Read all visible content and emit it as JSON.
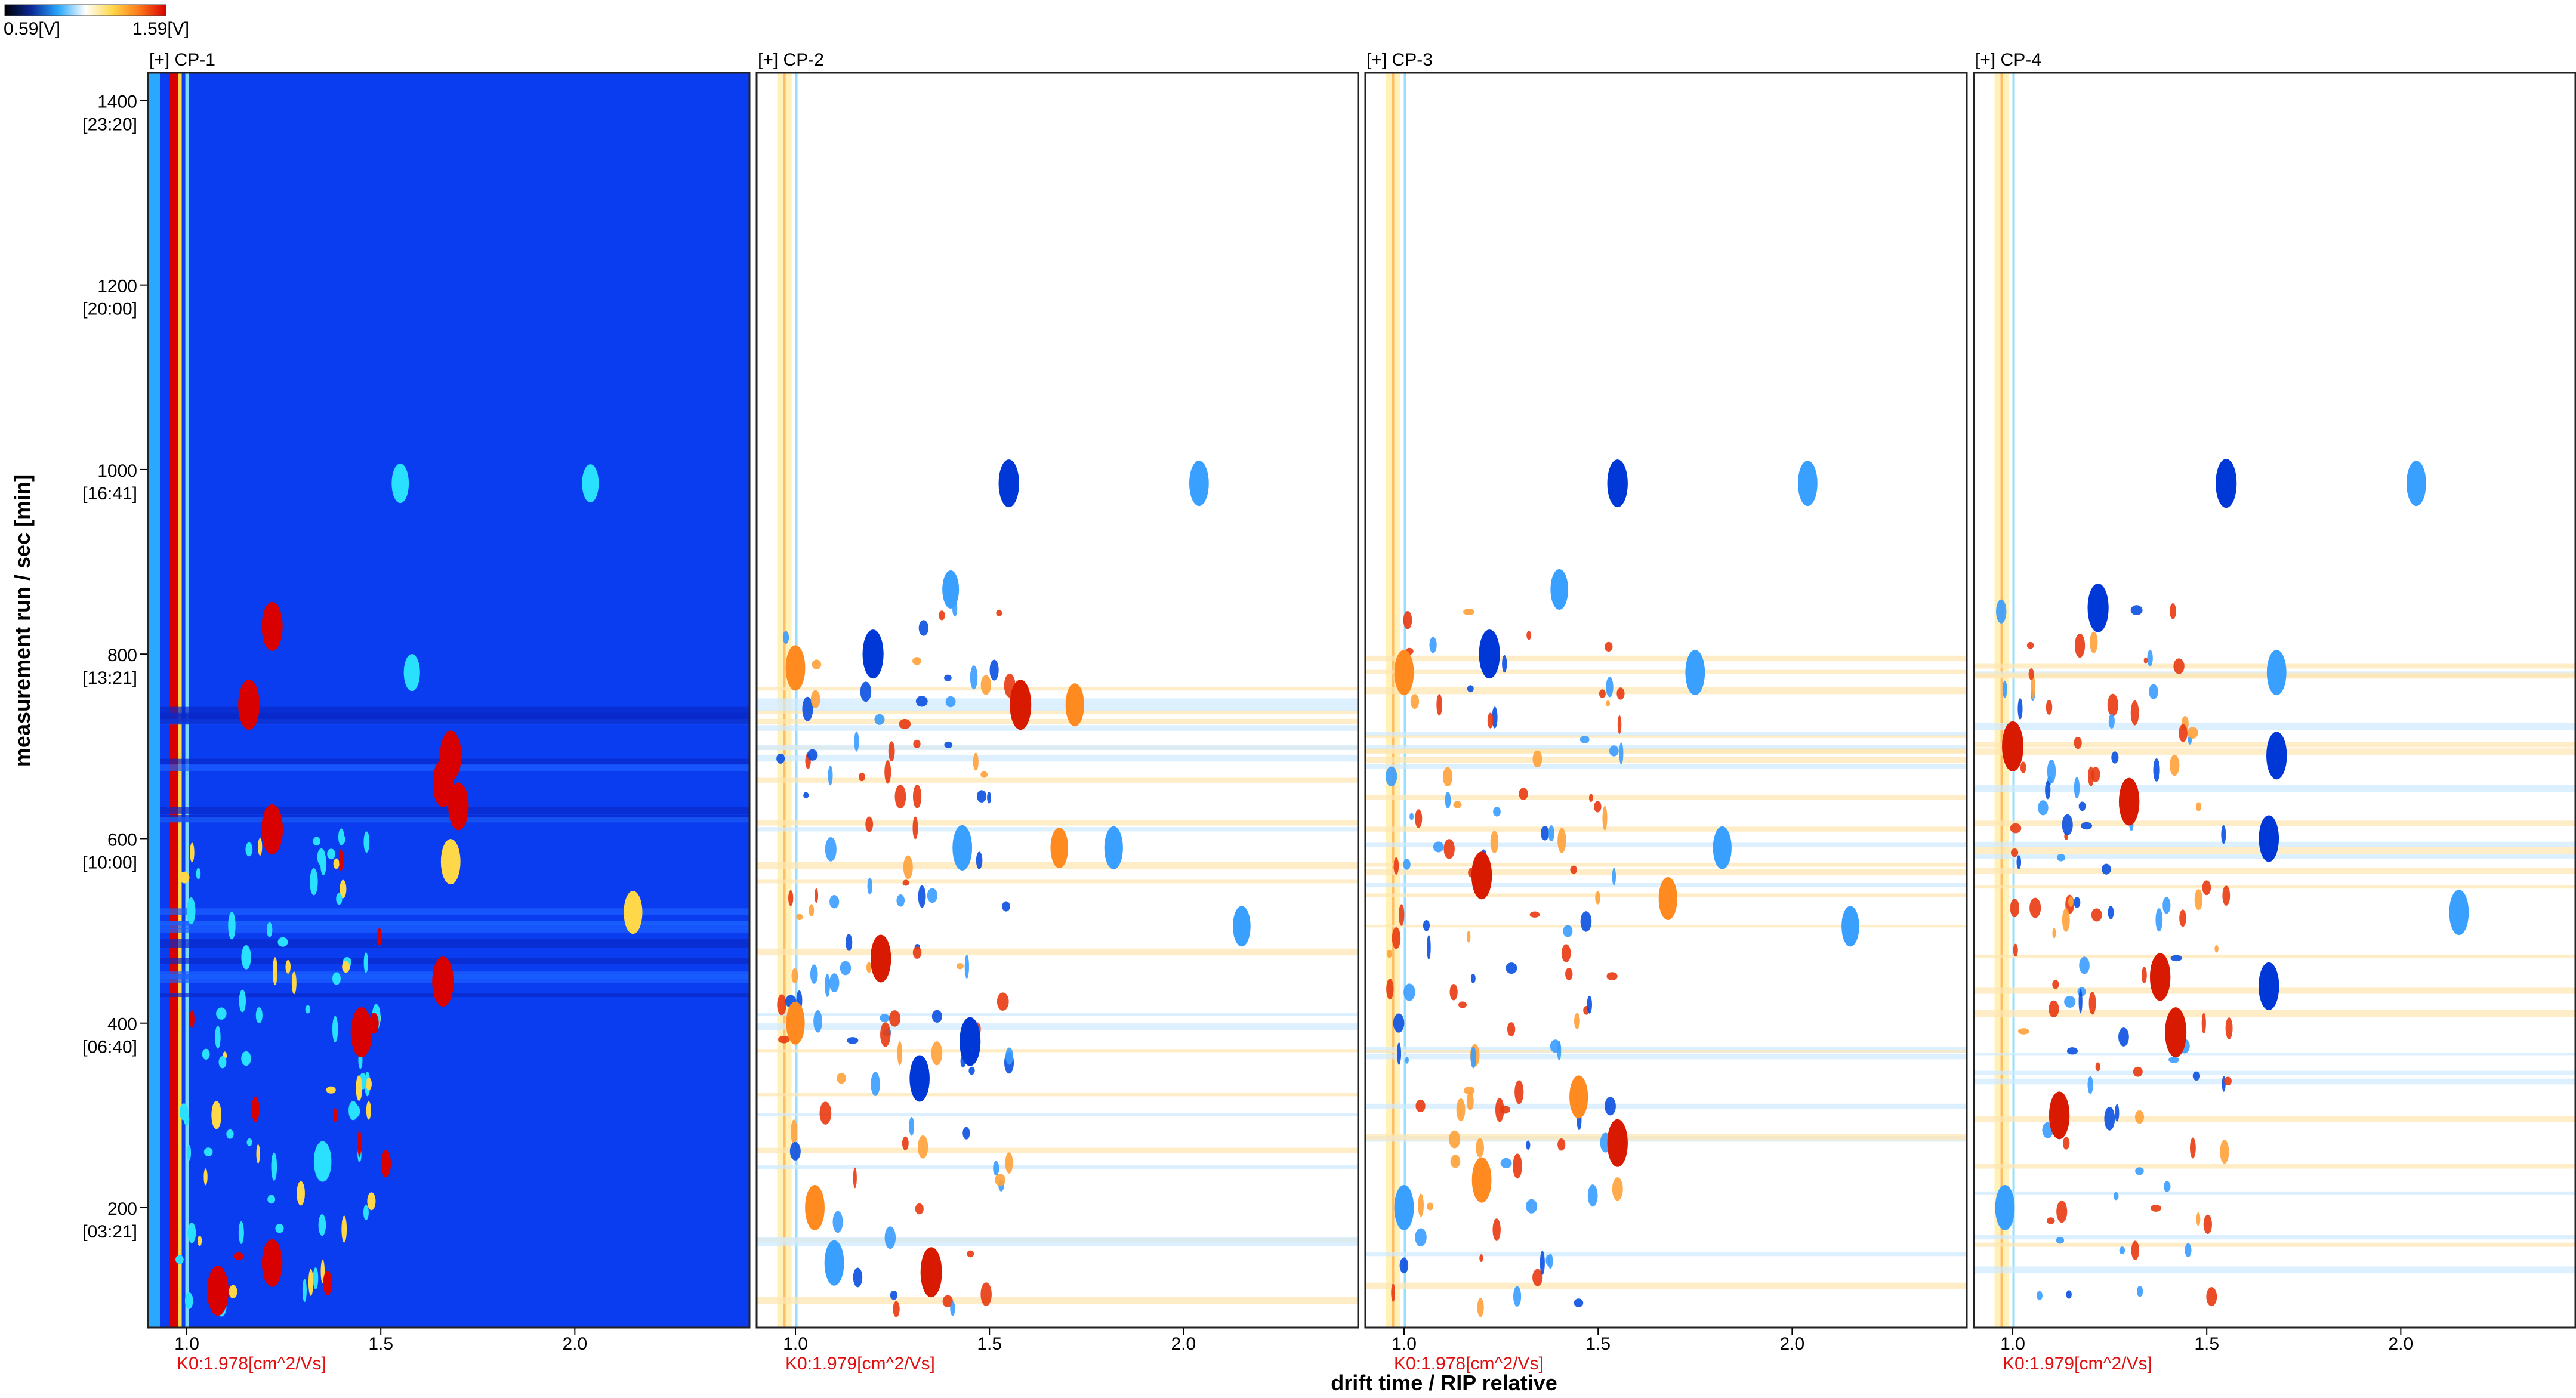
{
  "chart_data": {
    "type": "heatmap",
    "colorbar": {
      "min_label": "0.59[V]",
      "max_label": "1.59[V]",
      "colors": [
        "#000000",
        "#0a2a9a",
        "#2aa8ff",
        "#ffffff",
        "#ffd84a",
        "#ff7a1a",
        "#d80000"
      ]
    },
    "ylabel": "measurement run / sec [min]",
    "xlabel": "drift time / RIP relative",
    "ylim": [
      70,
      1430
    ],
    "xlim": [
      0.9,
      2.45
    ],
    "yticks": [
      {
        "value": 1400,
        "label": "1400",
        "sublabel": "[23:20]"
      },
      {
        "value": 1200,
        "label": "1200",
        "sublabel": "[20:00]"
      },
      {
        "value": 1000,
        "label": "1000",
        "sublabel": "[16:41]"
      },
      {
        "value": 800,
        "label": "800",
        "sublabel": "[13:21]"
      },
      {
        "value": 600,
        "label": "600",
        "sublabel": "[10:00]"
      },
      {
        "value": 400,
        "label": "400",
        "sublabel": "[06:40]"
      },
      {
        "value": 200,
        "label": "200",
        "sublabel": "[03:21]"
      }
    ],
    "xticks": [
      {
        "value": 1.0,
        "label": "1.0"
      },
      {
        "value": 1.5,
        "label": "1.5"
      },
      {
        "value": 2.0,
        "label": "2.0"
      }
    ],
    "panels": [
      {
        "title": "[+] CP-1",
        "k0_label": "K0:1.978[cm^2/Vs]",
        "mode": "absolute"
      },
      {
        "title": "[+] CP-2",
        "k0_label": "K0:1.979[cm^2/Vs]",
        "mode": "difference"
      },
      {
        "title": "[+] CP-3",
        "k0_label": "K0:1.978[cm^2/Vs]",
        "mode": "difference"
      },
      {
        "title": "[+] CP-4",
        "k0_label": "K0:1.979[cm^2/Vs]",
        "mode": "difference"
      }
    ],
    "rip_drift_time": 0.99,
    "peaks": {
      "CP-1": [
        {
          "x": 1.55,
          "y": 985,
          "v": 0.55
        },
        {
          "x": 2.04,
          "y": 985,
          "v": 0.5
        },
        {
          "x": 1.58,
          "y": 780,
          "v": 0.45
        },
        {
          "x": 1.16,
          "y": 745,
          "v": 1.0
        },
        {
          "x": 1.68,
          "y": 690,
          "v": 1.0
        },
        {
          "x": 1.66,
          "y": 660,
          "v": 0.9
        },
        {
          "x": 1.7,
          "y": 635,
          "v": 0.9
        },
        {
          "x": 1.22,
          "y": 610,
          "v": 1.0
        },
        {
          "x": 1.68,
          "y": 575,
          "v": 0.8
        },
        {
          "x": 2.15,
          "y": 520,
          "v": 0.7
        },
        {
          "x": 1.66,
          "y": 445,
          "v": 1.0
        },
        {
          "x": 1.45,
          "y": 390,
          "v": 1.0
        },
        {
          "x": 1.22,
          "y": 830,
          "v": 0.95
        },
        {
          "x": 1.35,
          "y": 250,
          "v": 0.6
        },
        {
          "x": 1.22,
          "y": 140,
          "v": 0.9
        },
        {
          "x": 1.08,
          "y": 110,
          "v": 1.0
        }
      ],
      "CP-2": [
        {
          "x": 1.55,
          "y": 985,
          "v": -0.9
        },
        {
          "x": 2.04,
          "y": 985,
          "v": -0.8
        },
        {
          "x": 1.4,
          "y": 870,
          "v": -0.5
        },
        {
          "x": 1.2,
          "y": 800,
          "v": -0.95
        },
        {
          "x": 1.58,
          "y": 745,
          "v": 1.0
        },
        {
          "x": 1.72,
          "y": 745,
          "v": 0.7
        },
        {
          "x": 1.68,
          "y": 590,
          "v": 0.6
        },
        {
          "x": 1.82,
          "y": 590,
          "v": -0.7
        },
        {
          "x": 1.43,
          "y": 590,
          "v": -0.8
        },
        {
          "x": 2.15,
          "y": 505,
          "v": -0.6
        },
        {
          "x": 1.22,
          "y": 470,
          "v": 0.9
        },
        {
          "x": 1.45,
          "y": 380,
          "v": -0.95
        },
        {
          "x": 1.32,
          "y": 340,
          "v": -0.85
        },
        {
          "x": 1.35,
          "y": 130,
          "v": 1.0
        },
        {
          "x": 1.0,
          "y": 785,
          "v": 0.8
        },
        {
          "x": 1.0,
          "y": 400,
          "v": 0.7
        },
        {
          "x": 1.05,
          "y": 200,
          "v": 0.8
        },
        {
          "x": 1.1,
          "y": 140,
          "v": -0.8
        }
      ],
      "CP-3": [
        {
          "x": 1.55,
          "y": 985,
          "v": -0.9
        },
        {
          "x": 2.04,
          "y": 985,
          "v": -0.8
        },
        {
          "x": 1.4,
          "y": 870,
          "v": -0.6
        },
        {
          "x": 1.22,
          "y": 800,
          "v": -0.95
        },
        {
          "x": 1.75,
          "y": 780,
          "v": -0.8
        },
        {
          "x": 1.68,
          "y": 535,
          "v": 0.7
        },
        {
          "x": 1.82,
          "y": 590,
          "v": -0.7
        },
        {
          "x": 2.15,
          "y": 505,
          "v": -0.6
        },
        {
          "x": 1.2,
          "y": 560,
          "v": 0.9
        },
        {
          "x": 1.55,
          "y": 270,
          "v": 0.9
        },
        {
          "x": 1.45,
          "y": 320,
          "v": 0.7
        },
        {
          "x": 1.0,
          "y": 780,
          "v": 0.8
        },
        {
          "x": 1.0,
          "y": 200,
          "v": -0.8
        },
        {
          "x": 1.2,
          "y": 230,
          "v": 0.8
        }
      ],
      "CP-4": [
        {
          "x": 1.55,
          "y": 985,
          "v": -0.95
        },
        {
          "x": 2.04,
          "y": 985,
          "v": -0.8
        },
        {
          "x": 1.22,
          "y": 850,
          "v": -0.95
        },
        {
          "x": 1.68,
          "y": 780,
          "v": -0.8
        },
        {
          "x": 1.68,
          "y": 690,
          "v": -0.9
        },
        {
          "x": 1.66,
          "y": 600,
          "v": -0.85
        },
        {
          "x": 2.15,
          "y": 520,
          "v": -0.8
        },
        {
          "x": 1.66,
          "y": 440,
          "v": -0.9
        },
        {
          "x": 1.42,
          "y": 390,
          "v": 1.0
        },
        {
          "x": 1.38,
          "y": 450,
          "v": 0.9
        },
        {
          "x": 1.0,
          "y": 700,
          "v": 1.0
        },
        {
          "x": 0.98,
          "y": 200,
          "v": -0.8
        },
        {
          "x": 1.12,
          "y": 300,
          "v": 0.9
        },
        {
          "x": 1.3,
          "y": 640,
          "v": 0.9
        }
      ]
    }
  }
}
